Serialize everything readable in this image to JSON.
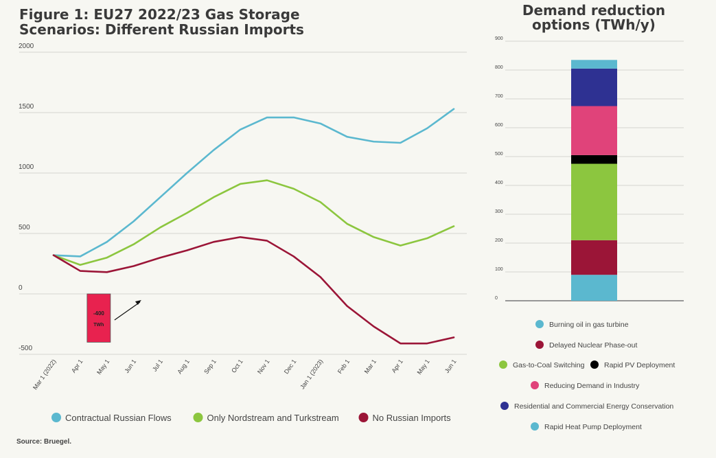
{
  "left_title": "Figure 1: EU27 2022/23 Gas Storage Scenarios: Different Russian Imports",
  "right_title": "Demand reduction options (TWh/y)",
  "source": "Source: Bruegel.",
  "chart_data": [
    {
      "type": "line",
      "title": "Figure 1: EU27 2022/23 Gas Storage Scenarios: Different Russian Imports",
      "x": [
        "Mar 1 (2022)",
        "Apr 1",
        "May 1",
        "Jun 1",
        "Jul 1",
        "Aug 1",
        "Sep 1",
        "Oct 1",
        "Nov 1",
        "Dec 1",
        "Jan 1 (2023)",
        "Feb 1",
        "Mar 1",
        "Apr 1",
        "May 1",
        "Jun 1"
      ],
      "yticks": [
        2000,
        1500,
        1000,
        500,
        0,
        -500
      ],
      "ylim": [
        -500,
        2000
      ],
      "grid": true,
      "legend_position": "bottom",
      "series": [
        {
          "name": "Contractual Russian Flows",
          "color": "#5bb8cf",
          "values": [
            320,
            310,
            430,
            600,
            800,
            1000,
            1190,
            1360,
            1460,
            1460,
            1410,
            1300,
            1260,
            1250,
            1370,
            1530
          ]
        },
        {
          "name": "Only Nordstream and Turkstream",
          "color": "#8cc63f",
          "values": [
            320,
            240,
            300,
            410,
            550,
            670,
            800,
            910,
            940,
            870,
            760,
            580,
            470,
            400,
            460,
            560
          ]
        },
        {
          "name": "No Russian Imports",
          "color": "#9b1537",
          "values": [
            320,
            190,
            180,
            230,
            300,
            360,
            430,
            470,
            440,
            310,
            140,
            -100,
            -270,
            -410,
            -410,
            -360
          ]
        }
      ],
      "annotation": {
        "text_line1": "-400",
        "text_line2": "TWh",
        "color": "#e8224f",
        "x": "Apr 1",
        "from": 0,
        "to": -400
      }
    },
    {
      "type": "bar",
      "stacked": true,
      "title": "Demand reduction options (TWh/y)",
      "ylim": [
        0,
        900
      ],
      "yticks": [
        900,
        800,
        700,
        600,
        500,
        400,
        300,
        200,
        100,
        0
      ],
      "grid": true,
      "legend_position": "bottom",
      "series": [
        {
          "name": "Rapid Heat Pump Deployment",
          "color": "#5bb8cf",
          "value": 90
        },
        {
          "name": "Delayed Nuclear Phase-out",
          "color": "#9b1537",
          "value": 120
        },
        {
          "name": "Gas-to-Coal Switching",
          "color": "#8cc63f",
          "value": 265
        },
        {
          "name": "Rapid PV Deployment",
          "color": "#000000",
          "value": 30
        },
        {
          "name": "Reducing Demand in Industry",
          "color": "#e0437a",
          "value": 170
        },
        {
          "name": "Residential and Commercial Energy Conservation",
          "color": "#2e3192",
          "value": 130
        },
        {
          "name": "Burning oil in gas turbine",
          "color": "#5bb8cf",
          "value": 30
        }
      ],
      "legend_order": [
        {
          "name": "Burning oil in gas turbine",
          "color": "#5bb8cf"
        },
        {
          "name": "Delayed Nuclear Phase-out",
          "color": "#9b1537"
        },
        {
          "name": "Gas-to-Coal Switching",
          "color": "#8cc63f"
        },
        {
          "name": "Rapid PV Deployment",
          "color": "#000000"
        },
        {
          "name": "Reducing Demand in Industry",
          "color": "#e0437a"
        },
        {
          "name": "Residential and Commercial Energy Conservation",
          "color": "#2e3192"
        },
        {
          "name": "Rapid Heat Pump Deployment",
          "color": "#5bb8cf"
        }
      ]
    }
  ]
}
